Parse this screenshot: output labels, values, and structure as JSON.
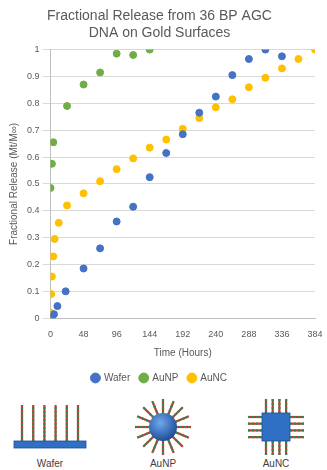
{
  "chart_data": {
    "type": "scatter",
    "title": "Fractional Release from 36 BP AGC DNA on Gold Surfaces",
    "x_label": "Time (Hours)",
    "y_label": "Fractional Release (Mt/M∞)",
    "xlim": [
      0,
      384
    ],
    "xticks": [
      0,
      48,
      96,
      144,
      192,
      240,
      288,
      336,
      384
    ],
    "ylim": [
      0,
      1
    ],
    "yticks": [
      0,
      0.1,
      0.2,
      0.3,
      0.4,
      0.5,
      0.6,
      0.7,
      0.8,
      0.9,
      1
    ],
    "grid": true,
    "legend": "bottom",
    "series": [
      {
        "name": "Wafer",
        "color": "#4472c4",
        "marker": "circle",
        "x": [
          2,
          5,
          10,
          22,
          48,
          72,
          96,
          120,
          144,
          168,
          192,
          216,
          240,
          264,
          288,
          312,
          336
        ],
        "values": [
          0,
          0.015,
          0.045,
          0.1,
          0.185,
          0.26,
          0.36,
          0.415,
          0.525,
          0.615,
          0.685,
          0.765,
          0.825,
          0.905,
          0.965,
          1.0,
          0.975
        ]
      },
      {
        "name": "AuNP",
        "color": "#70ad47",
        "marker": "circle",
        "x": [
          0,
          2,
          4,
          24,
          48,
          72,
          96,
          120,
          144
        ],
        "values": [
          0.485,
          0.575,
          0.655,
          0.79,
          0.87,
          0.915,
          0.985,
          0.98,
          1.0
        ]
      },
      {
        "name": "AuNC",
        "color": "#ffc000",
        "marker": "circle",
        "x": [
          0,
          1,
          2,
          4,
          6,
          12,
          24,
          48,
          72,
          96,
          120,
          144,
          168,
          192,
          216,
          240,
          264,
          288,
          312,
          336,
          360,
          384
        ],
        "values": [
          0.02,
          0.09,
          0.155,
          0.23,
          0.295,
          0.355,
          0.42,
          0.465,
          0.51,
          0.555,
          0.595,
          0.635,
          0.665,
          0.705,
          0.745,
          0.785,
          0.815,
          0.86,
          0.895,
          0.93,
          0.965,
          1.0
        ]
      }
    ]
  },
  "diagram": {
    "labels": [
      "Wafer",
      "AuNP",
      "AuNC"
    ]
  }
}
